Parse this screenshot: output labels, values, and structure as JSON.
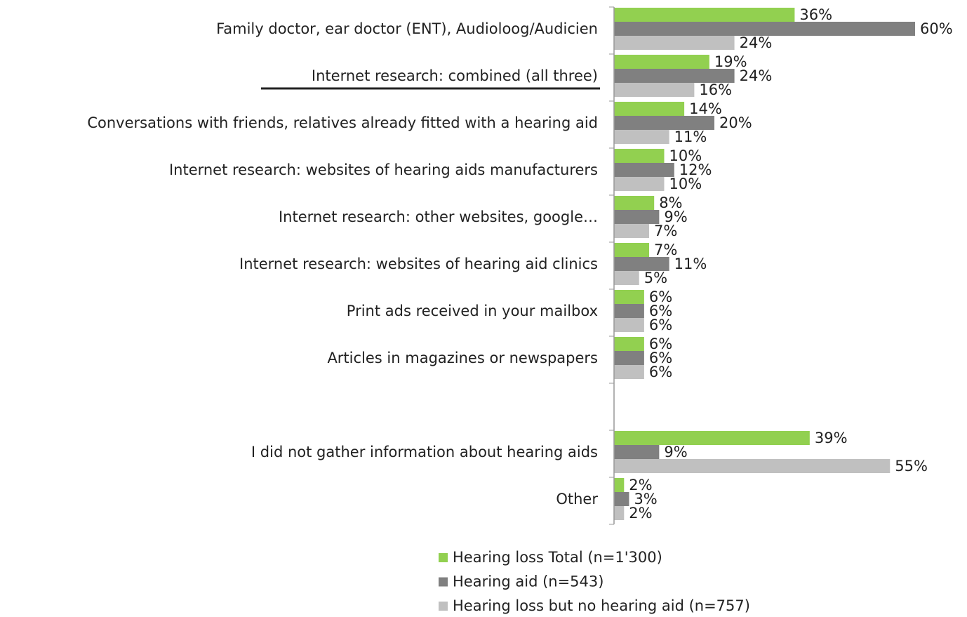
{
  "chart_data": {
    "type": "bar",
    "orientation": "horizontal",
    "categories": [
      "Family doctor, ear doctor (ENT), Audioloog/Audicien",
      "Internet research: combined (all three)",
      "Conversations with friends, relatives already fitted with a hearing aid",
      "Internet research: websites of hearing aids manufacturers",
      "Internet research: other websites, google…",
      "Internet research: websites of hearing aid clinics",
      "Print ads received in your mailbox",
      "Articles in magazines or newspapers",
      null,
      "I did not gather information about hearing aids",
      "Other"
    ],
    "series": [
      {
        "name": "Hearing loss Total (n=1'300)",
        "color": "#92d050",
        "values": [
          36,
          19,
          14,
          10,
          8,
          7,
          6,
          6,
          null,
          39,
          2
        ],
        "value_labels": [
          "36%",
          "19%",
          "14%",
          "10%",
          "8%",
          "7%",
          "6%",
          "6%",
          null,
          "39%",
          "2%"
        ]
      },
      {
        "name": "Hearing aid (n=543)",
        "color": "#808080",
        "values": [
          60,
          24,
          20,
          12,
          9,
          11,
          6,
          6,
          null,
          9,
          3
        ],
        "value_labels": [
          "60%",
          "24%",
          "20%",
          "12%",
          "9%",
          "11%",
          "6%",
          "6%",
          null,
          "9%",
          "3%"
        ]
      },
      {
        "name": "Hearing loss but no hearing aid (n=757)",
        "color": "#c0c0c0",
        "values": [
          24,
          16,
          11,
          10,
          7,
          5,
          6,
          6,
          null,
          55,
          2
        ],
        "value_labels": [
          "24%",
          "16%",
          "11%",
          "10%",
          "7%",
          "5%",
          "6%",
          "6%",
          null,
          "55%",
          "2%"
        ]
      }
    ],
    "xlim": [
      0,
      60
    ],
    "legend": "bottom"
  }
}
